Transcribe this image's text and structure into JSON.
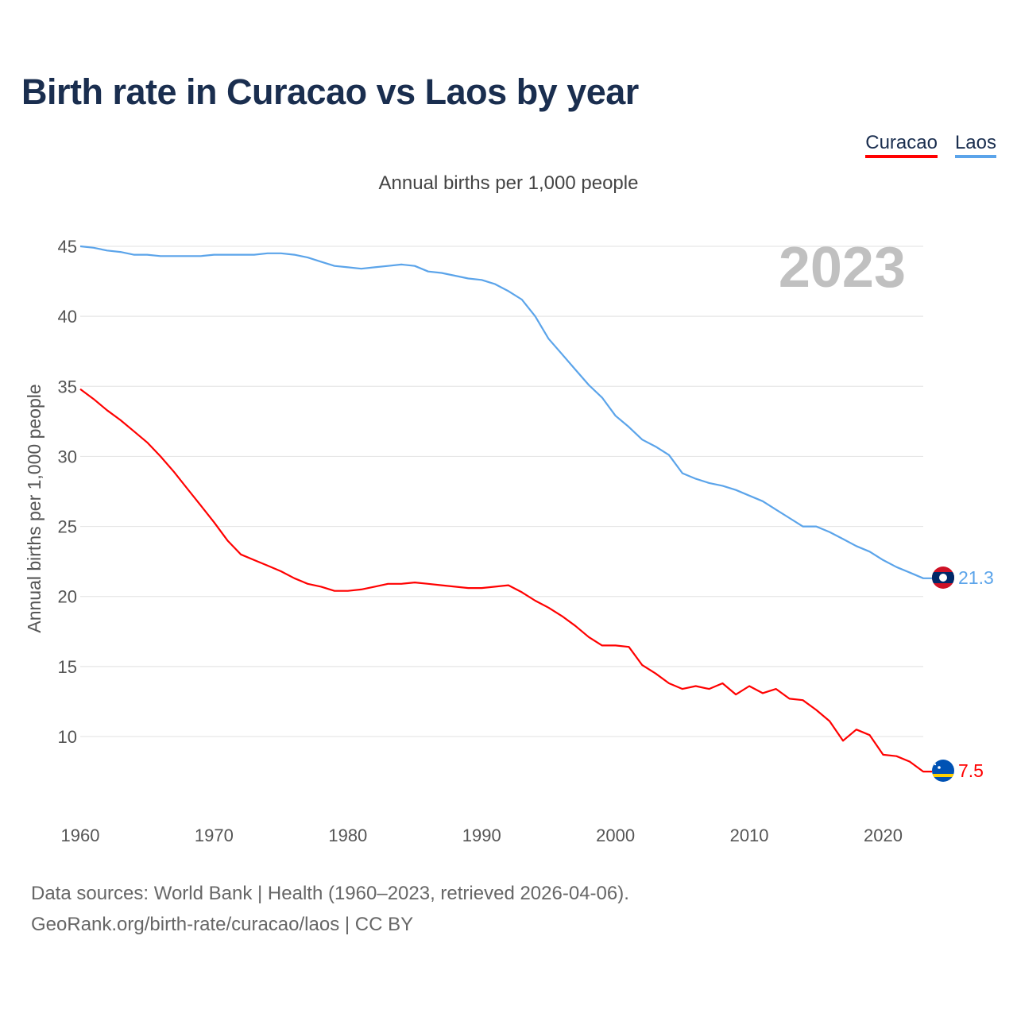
{
  "title": "Birth rate in Curacao vs Laos by year",
  "footer": {
    "line1": "Data sources: World Bank | Health (1960–2023, retrieved 2026-04-06).",
    "line2": "GeoRank.org/birth-rate/curacao/laos | CC BY"
  },
  "chart_data": {
    "type": "line",
    "title": "Birth rate in Curacao vs Laos by year",
    "subtitle": "Annual births per 1,000 people",
    "xlabel": "",
    "ylabel": "Annual births per 1,000 people",
    "year_label": "2023",
    "xlim": [
      1960,
      2023
    ],
    "ylim": [
      5,
      45
    ],
    "x_ticks": [
      1960,
      1970,
      1980,
      1990,
      2000,
      2010,
      2020
    ],
    "y_ticks": [
      10,
      15,
      20,
      25,
      30,
      35,
      40,
      45
    ],
    "grid": true,
    "legend_position": "top-right",
    "x_start": 1960,
    "series": [
      {
        "name": "Curacao",
        "color": "#ff0000",
        "end_label": "7.5",
        "flag": "curacao-flag",
        "values": [
          34.8,
          34.1,
          33.3,
          32.6,
          31.8,
          31.0,
          30.0,
          28.9,
          27.7,
          26.5,
          25.3,
          24.0,
          23.0,
          22.6,
          22.2,
          21.8,
          21.3,
          20.9,
          20.7,
          20.4,
          20.4,
          20.5,
          20.7,
          20.9,
          20.9,
          21.0,
          20.9,
          20.8,
          20.7,
          20.6,
          20.6,
          20.7,
          20.8,
          20.3,
          19.7,
          19.2,
          18.6,
          17.9,
          17.1,
          16.5,
          16.5,
          16.4,
          15.1,
          14.5,
          13.8,
          13.4,
          13.6,
          13.4,
          13.8,
          13.0,
          13.6,
          13.1,
          13.4,
          12.7,
          12.6,
          11.9,
          11.1,
          9.7,
          10.5,
          10.1,
          8.7,
          8.6,
          8.2,
          7.5
        ]
      },
      {
        "name": "Laos",
        "color": "#5ba4ea",
        "end_label": "21.3",
        "flag": "laos-flag",
        "values": [
          45.0,
          44.9,
          44.7,
          44.6,
          44.4,
          44.4,
          44.3,
          44.3,
          44.3,
          44.3,
          44.4,
          44.4,
          44.4,
          44.4,
          44.5,
          44.5,
          44.4,
          44.2,
          43.9,
          43.6,
          43.5,
          43.4,
          43.5,
          43.6,
          43.7,
          43.6,
          43.2,
          43.1,
          42.9,
          42.7,
          42.6,
          42.3,
          41.8,
          41.2,
          40.0,
          38.4,
          37.3,
          36.2,
          35.1,
          34.2,
          32.9,
          32.1,
          31.2,
          30.7,
          30.1,
          28.8,
          28.4,
          28.1,
          27.9,
          27.6,
          27.2,
          26.8,
          26.2,
          25.6,
          25.0,
          25.0,
          24.6,
          24.1,
          23.6,
          23.2,
          22.6,
          22.1,
          21.7,
          21.3
        ]
      }
    ]
  }
}
